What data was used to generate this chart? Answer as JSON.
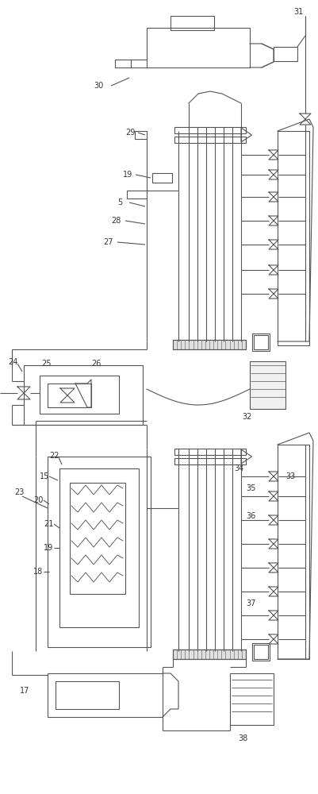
{
  "bg": "#ffffff",
  "lc": "#555555",
  "lw": 0.8,
  "fig_w": 4.01,
  "fig_h": 10.0,
  "dpi": 100
}
